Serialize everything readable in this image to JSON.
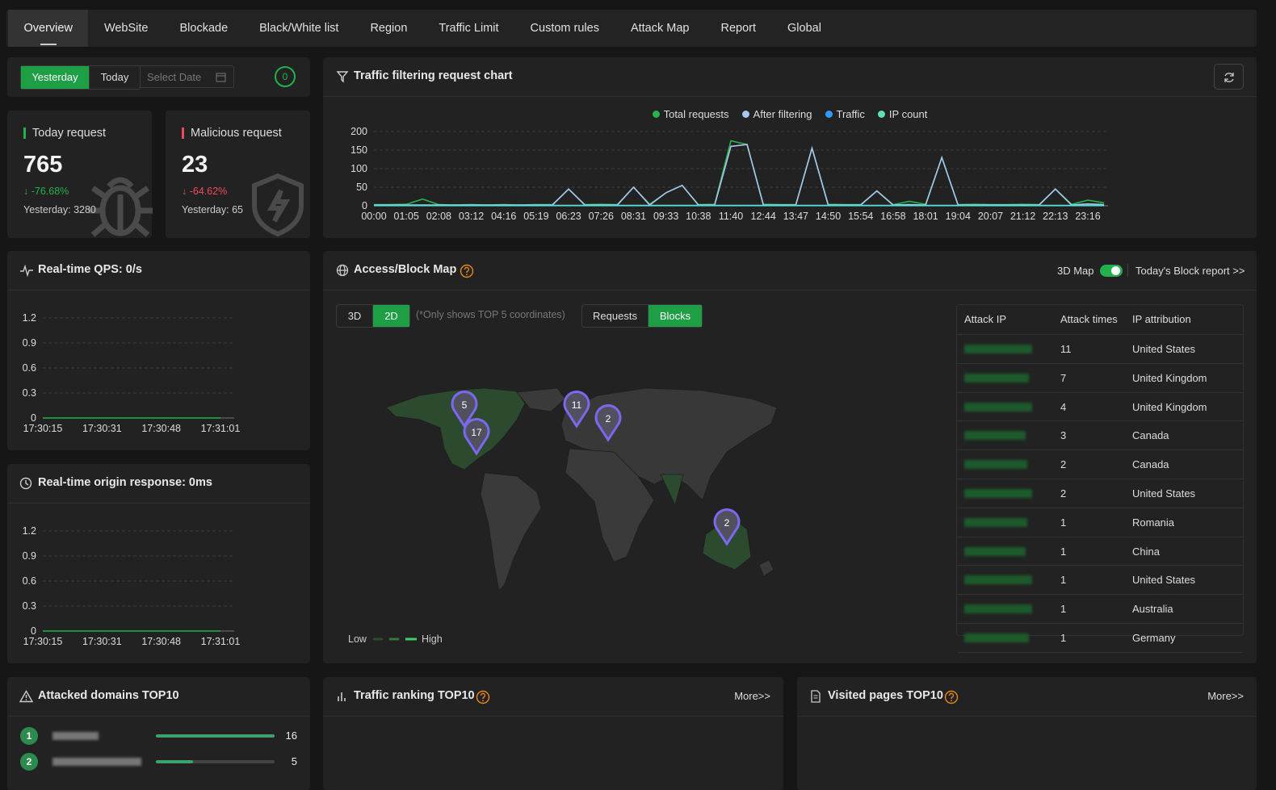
{
  "nav": {
    "tabs": [
      "Overview",
      "WebSite",
      "Blockade",
      "Black/White list",
      "Region",
      "Traffic Limit",
      "Custom rules",
      "Attack Map",
      "Report",
      "Global"
    ],
    "active": 0
  },
  "date_filter": {
    "options": [
      "Yesterday",
      "Today"
    ],
    "active": 0,
    "placeholder": "Select Date",
    "badge": 0
  },
  "stats": [
    {
      "title": "Today request",
      "value": 765,
      "change": "↓ -76.68%",
      "previous": "Yesterday: 3280"
    },
    {
      "title": "Malicious request",
      "value": 23,
      "change": "↓ -64.62%",
      "previous": "Yesterday: 65"
    }
  ],
  "traffic_chart": {
    "type": "line",
    "title": "Traffic filtering request chart",
    "x": [
      "00:00",
      null,
      "01:05",
      null,
      "02:08",
      null,
      "03:12",
      null,
      "04:16",
      null,
      "05:19",
      null,
      "06:23",
      null,
      "07:26",
      null,
      "08:31",
      null,
      "09:33",
      null,
      "10:38",
      null,
      "11:40",
      null,
      "12:44",
      null,
      "13:47",
      null,
      "14:50",
      null,
      "15:54",
      null,
      "16:58",
      null,
      "18:01",
      null,
      "19:04",
      null,
      "20:07",
      null,
      "21:12",
      null,
      "22:13",
      null,
      "23:16",
      null
    ],
    "series": [
      {
        "name": "Total requests",
        "color": "#27b24a",
        "values": [
          3,
          3,
          4,
          18,
          3,
          2,
          3,
          2,
          3,
          2,
          3,
          3,
          45,
          3,
          4,
          3,
          50,
          4,
          35,
          55,
          3,
          4,
          175,
          165,
          4,
          3,
          3,
          155,
          4,
          3,
          3,
          40,
          3,
          12,
          4,
          130,
          3,
          4,
          3,
          3,
          4,
          3,
          45,
          4,
          15,
          8
        ]
      },
      {
        "name": "After filtering",
        "color": "#a9c6ee",
        "values": [
          2,
          2,
          2,
          2,
          2,
          2,
          2,
          2,
          2,
          2,
          2,
          2,
          45,
          2,
          2,
          2,
          50,
          2,
          35,
          55,
          2,
          2,
          160,
          165,
          2,
          2,
          2,
          155,
          2,
          2,
          2,
          40,
          2,
          3,
          2,
          130,
          2,
          2,
          2,
          2,
          2,
          2,
          45,
          2,
          5,
          3
        ]
      },
      {
        "name": "Traffic",
        "color": "#2f9bff",
        "values": [
          0,
          0,
          0,
          0,
          0,
          0,
          0,
          0,
          0,
          0,
          0,
          0,
          0,
          0,
          0,
          0,
          0,
          0,
          0,
          0,
          0,
          0,
          0,
          0,
          0,
          0,
          0,
          0,
          0,
          0,
          0,
          0,
          0,
          0,
          0,
          0,
          0,
          0,
          0,
          0,
          0,
          0,
          0,
          0,
          0,
          0
        ]
      },
      {
        "name": "IP count",
        "color": "#5fe0b8",
        "values": [
          1,
          1,
          1,
          1,
          1,
          1,
          1,
          1,
          1,
          1,
          1,
          1,
          1,
          1,
          1,
          1,
          1,
          1,
          1,
          1,
          1,
          1,
          1,
          1,
          1,
          1,
          1,
          1,
          1,
          1,
          1,
          1,
          1,
          1,
          1,
          1,
          1,
          1,
          1,
          1,
          1,
          1,
          1,
          1,
          1,
          1
        ]
      }
    ],
    "ylim": [
      0,
      200
    ],
    "yticks": [
      0,
      50,
      100,
      150,
      200
    ],
    "grid": true
  },
  "qps_chart": {
    "type": "line",
    "title": "Real-time QPS: 0/s",
    "x": [
      "17:30:15",
      "17:30:31",
      "17:30:48",
      "17:31:01"
    ],
    "values": [
      0,
      0,
      0,
      0
    ],
    "color": "#22b14c",
    "ylim": [
      0,
      1.2
    ],
    "yticks": [
      0,
      0.3,
      0.6,
      0.9,
      1.2
    ],
    "grid": true
  },
  "origin_chart": {
    "type": "line",
    "title": "Real-time origin response: 0ms",
    "x": [
      "17:30:15",
      "17:30:31",
      "17:30:48",
      "17:31:01"
    ],
    "values": [
      0,
      0,
      0,
      0
    ],
    "color": "#22b14c",
    "ylim": [
      0,
      1.2
    ],
    "yticks": [
      0,
      0.3,
      0.6,
      0.9,
      1.2
    ],
    "grid": true
  },
  "map": {
    "title": "Access/Block Map",
    "toggle_label": "3D Map",
    "report_link": "Today's Block report >>",
    "view_options": [
      "3D",
      "2D"
    ],
    "view_active": 1,
    "note": "(*Only shows TOP 5 coordinates)",
    "mode_options": [
      "Requests",
      "Blocks"
    ],
    "mode_active": 1,
    "markers": [
      5,
      17,
      11,
      2,
      2
    ],
    "legend_low": "Low",
    "legend_high": "High",
    "table": {
      "columns": [
        "Attack IP",
        "Attack times",
        "IP attribution"
      ],
      "rows": [
        [
          11,
          "United States"
        ],
        [
          7,
          "United Kingdom"
        ],
        [
          4,
          "United Kingdom"
        ],
        [
          3,
          "Canada"
        ],
        [
          2,
          "Canada"
        ],
        [
          2,
          "United States"
        ],
        [
          1,
          "Romania"
        ],
        [
          1,
          "China"
        ],
        [
          1,
          "United States"
        ],
        [
          1,
          "Australia"
        ],
        [
          1,
          "Germany"
        ]
      ]
    }
  },
  "attacked_domains": {
    "title": "Attacked domains TOP10",
    "ranks": [
      1,
      2
    ],
    "values": [
      16,
      5
    ]
  },
  "traffic_ranking": {
    "title": "Traffic ranking TOP10",
    "more": "More>>"
  },
  "visited_pages": {
    "title": "Visited pages TOP10",
    "more": "More>>"
  }
}
